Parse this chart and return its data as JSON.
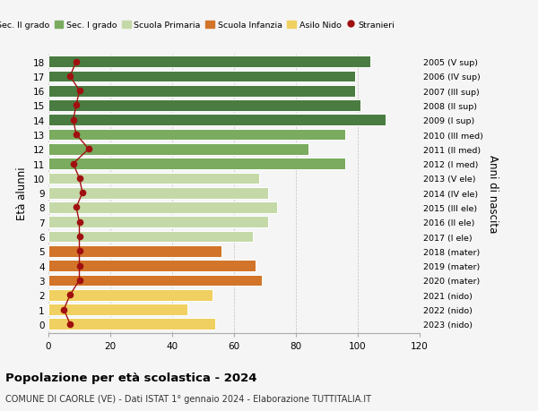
{
  "ages": [
    18,
    17,
    16,
    15,
    14,
    13,
    12,
    11,
    10,
    9,
    8,
    7,
    6,
    5,
    4,
    3,
    2,
    1,
    0
  ],
  "bar_values": [
    104,
    99,
    99,
    101,
    109,
    96,
    84,
    96,
    68,
    71,
    74,
    71,
    66,
    56,
    67,
    69,
    53,
    45,
    54
  ],
  "anni_nascita": [
    "2005 (V sup)",
    "2006 (IV sup)",
    "2007 (III sup)",
    "2008 (II sup)",
    "2009 (I sup)",
    "2010 (III med)",
    "2011 (II med)",
    "2012 (I med)",
    "2013 (V ele)",
    "2014 (IV ele)",
    "2015 (III ele)",
    "2016 (II ele)",
    "2017 (I ele)",
    "2018 (mater)",
    "2019 (mater)",
    "2020 (mater)",
    "2021 (nido)",
    "2022 (nido)",
    "2023 (nido)"
  ],
  "stranieri": [
    9,
    7,
    10,
    9,
    8,
    9,
    13,
    8,
    10,
    11,
    9,
    10,
    10,
    10,
    10,
    10,
    7,
    5,
    7
  ],
  "bar_colors": [
    "#4a7c42",
    "#4a7c42",
    "#4a7c42",
    "#4a7c42",
    "#4a7c42",
    "#7aab5e",
    "#7aab5e",
    "#7aab5e",
    "#c5d9a8",
    "#c5d9a8",
    "#c5d9a8",
    "#c5d9a8",
    "#c5d9a8",
    "#d2752a",
    "#d2752a",
    "#d2752a",
    "#f0d060",
    "#f0d060",
    "#f0d060"
  ],
  "legend_labels": [
    "Sec. II grado",
    "Sec. I grado",
    "Scuola Primaria",
    "Scuola Infanzia",
    "Asilo Nido",
    "Stranieri"
  ],
  "legend_colors": [
    "#4a7c42",
    "#7aab5e",
    "#c5d9a8",
    "#d2752a",
    "#f0d060",
    "#a01010"
  ],
  "stranieri_color": "#a01010",
  "title": "Popolazione per età scolastica - 2024",
  "subtitle": "COMUNE DI CAORLE (VE) - Dati ISTAT 1° gennaio 2024 - Elaborazione TUTTITALIA.IT",
  "ylabel": "Età alunni",
  "ylabel2": "Anni di nascita",
  "xlim": [
    0,
    120
  ],
  "xticks": [
    0,
    20,
    40,
    60,
    80,
    100,
    120
  ],
  "background_color": "#f5f5f5",
  "plot_background": "#f5f5f5"
}
